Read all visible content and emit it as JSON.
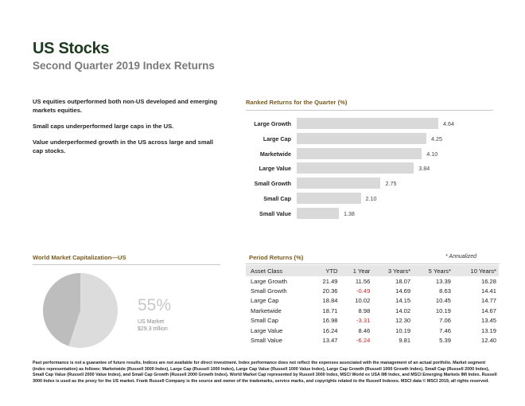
{
  "header": {
    "title": "US Stocks",
    "subtitle": "Second Quarter 2019 Index Returns"
  },
  "summary": [
    "US equities outperformed both non-US developed and emerging markets equities.",
    "Small caps underperformed large caps in the US.",
    "Value underperformed growth in the US across large        and small cap stocks."
  ],
  "ranked": {
    "title": "Ranked Returns for the Quarter (%)",
    "bar_color": "#d9d9d9"
  },
  "chart_data": {
    "type": "bar",
    "orientation": "horizontal",
    "title": "Ranked Returns for the Quarter (%)",
    "categories": [
      "Large Growth",
      "Large Cap",
      "Marketwide",
      "Large Value",
      "Small Growth",
      "Small Cap",
      "Small Value"
    ],
    "values": [
      4.64,
      4.25,
      4.1,
      3.84,
      2.75,
      2.1,
      1.38
    ],
    "value_labels": [
      "4.64",
      "4.25",
      "4.10",
      "3.84",
      "2.75",
      "2.10",
      "1.38"
    ],
    "xlim": [
      0,
      4.64
    ],
    "grid": false,
    "legend": "none"
  },
  "world": {
    "title": "World Market Capitalization—US",
    "percent": "55%",
    "label": "US Market",
    "value": "$29.3 trillion",
    "fraction": 0.55,
    "colors": {
      "us": "#dcdcdc",
      "rest": "#bdbdbd"
    }
  },
  "period": {
    "title": "Period Returns (%)",
    "note": "* Annualized",
    "headers": [
      "Asset Class",
      "YTD",
      "1 Year",
      "3 Years*",
      "5 Years*",
      "10 Years*"
    ],
    "rows": [
      [
        "Large Growth",
        "21.49",
        "11.56",
        "18.07",
        "13.39",
        "16.28"
      ],
      [
        "Small Growth",
        "20.36",
        "-0.49",
        "14.69",
        "8.63",
        "14.41"
      ],
      [
        "Large Cap",
        "18.84",
        "10.02",
        "14.15",
        "10.45",
        "14.77"
      ],
      [
        "Marketwide",
        "18.71",
        "8.98",
        "14.02",
        "10.19",
        "14.67"
      ],
      [
        "Small Cap",
        "16.98",
        "-3.31",
        "12.30",
        "7.06",
        "13.45"
      ],
      [
        "Large Value",
        "16.24",
        "8.46",
        "10.19",
        "7.46",
        "13.19"
      ],
      [
        "Small Value",
        "13.47",
        "-6.24",
        "9.81",
        "5.39",
        "12.40"
      ]
    ],
    "negative_color": "#c0282b"
  },
  "footnote": "Past performance is not a guarantee of future results. Indices are not available for direct investment. Index performance does not reflect the expenses associated with the management of an actual portfolio. Market segment (index representation) as follows: Marketwide (Russell 3000 Index), Large Cap (Russell 1000 Index), Large Cap Value (Russell 1000 Value Index), Large Cap Growth (Russell 1000 Growth Index), Small Cap (Russell 2000 Index), Small Cap Value (Russell 2000 Value Index), and Small Cap Growth (Russell 2000 Growth Index). World Market Cap represented by Russell 3000 Index, MSCI World ex USA IMI Index, and MSCI Emerging Markets IMI Index. Russell 3000 Index is used as the proxy for the US market. Frank Russell Company is the source and owner of the trademarks, service marks, and copyrights related to the Russell Indexes. MSCI data © MSCI 2019, all rights reserved."
}
